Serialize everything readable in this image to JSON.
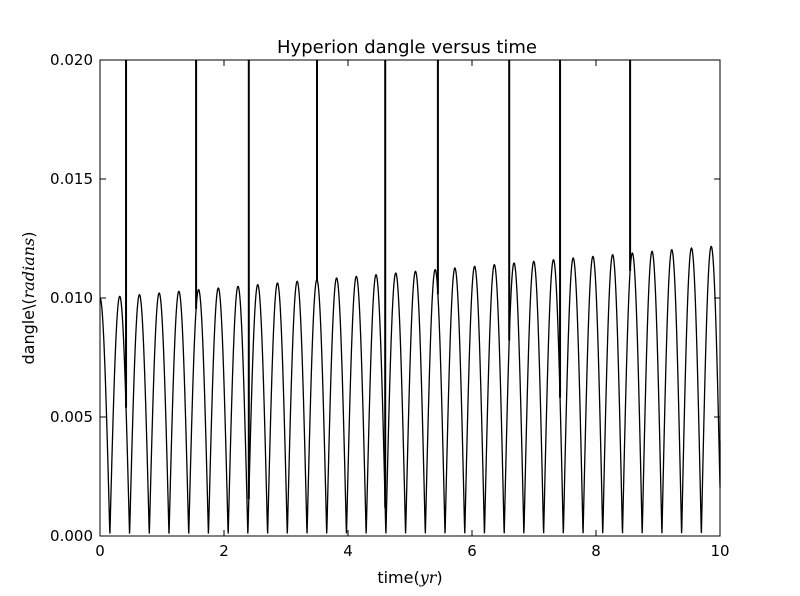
{
  "chart_data": {
    "type": "line",
    "title": "Hyperion dangle versus time",
    "xlabel": {
      "prefix": "time(",
      "math": "yr",
      "suffix": ")"
    },
    "ylabel": {
      "prefix": "dangle\\(",
      "math": "radians",
      "suffix": ")"
    },
    "xlim": [
      0,
      10
    ],
    "ylim": [
      0,
      0.02
    ],
    "xticks": [
      0,
      2,
      4,
      6,
      8,
      10
    ],
    "xtick_labels": [
      "0",
      "2",
      "4",
      "6",
      "8",
      "10"
    ],
    "yticks": [
      0,
      0.005,
      0.01,
      0.015,
      0.02
    ],
    "ytick_labels": [
      "0.000",
      "0.005",
      "0.010",
      "0.015",
      "0.020"
    ],
    "grid": false,
    "line_color": "#000000",
    "series": [
      {
        "description": "rectified oscillation, period ~0.318 yr, amplitude rising from ~0.0100 to ~0.0122",
        "oscillation_period": 0.318,
        "amplitude_start": 0.01,
        "amplitude_end": 0.0122,
        "first_peak_x": 0.0,
        "end_value": 0.004,
        "spike_times": [
          0.42,
          1.55,
          2.4,
          3.5,
          4.6,
          5.45,
          6.6,
          7.42,
          8.55
        ]
      }
    ]
  }
}
